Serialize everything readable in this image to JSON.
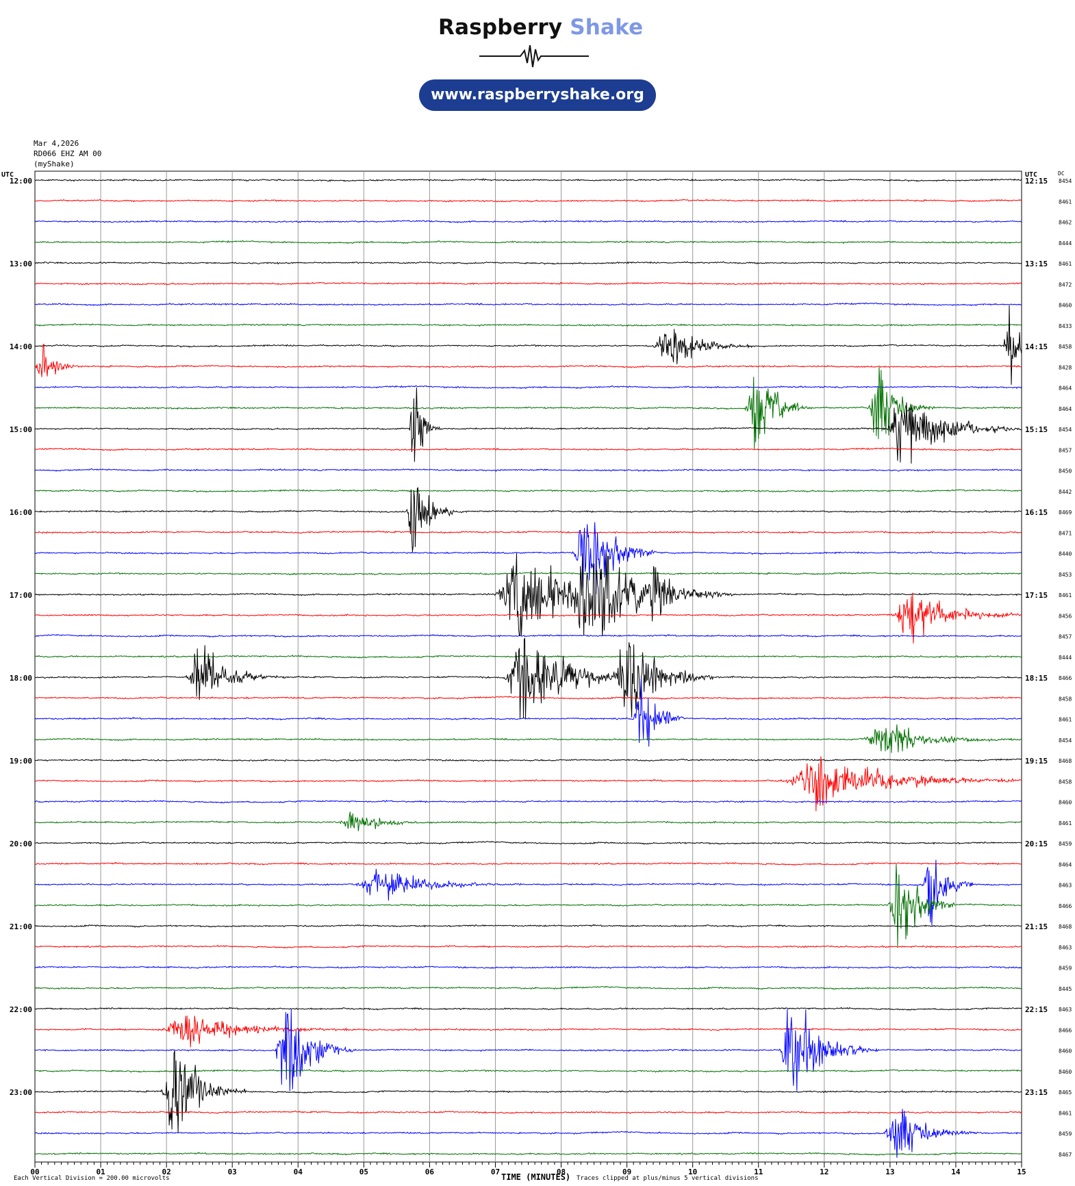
{
  "header": {
    "brand_part1": "Raspberry",
    "brand_part2": "Shake",
    "url": "www.raspberryshake.org"
  },
  "meta": {
    "date": "Mar 4,2026",
    "station": "RD066 EHZ AM 00",
    "network": "(myShake)"
  },
  "chart_data": {
    "type": "line",
    "title": "",
    "xlabel": "TIME (MINUTES)",
    "x_ticks": [
      "00",
      "01",
      "02",
      "03",
      "04",
      "05",
      "06",
      "07",
      "08",
      "09",
      "10",
      "11",
      "12",
      "13",
      "14",
      "15"
    ],
    "xlim": [
      0,
      15
    ],
    "left_axis_label": "UTC",
    "right_axis_label": "UTC",
    "dc_label": "DC",
    "hour_labels_left": [
      "12:00",
      "13:00",
      "14:00",
      "15:00",
      "16:00",
      "17:00",
      "18:00",
      "19:00",
      "20:00",
      "21:00",
      "22:00",
      "23:00"
    ],
    "hour_labels_right": [
      "12:15",
      "13:15",
      "14:15",
      "15:15",
      "16:15",
      "17:15",
      "18:15",
      "19:15",
      "20:15",
      "21:15",
      "22:15",
      "23:15"
    ],
    "trace_colors": [
      "#000000",
      "#ff0000",
      "#0000ff",
      "#007000"
    ],
    "dc_offsets": [
      8454,
      8461,
      8462,
      8444,
      8461,
      8472,
      8460,
      8433,
      8458,
      8428,
      8464,
      8464,
      8454,
      8457,
      8450,
      8442,
      8469,
      8471,
      8440,
      8453,
      8461,
      8456,
      8457,
      8444,
      8466,
      8458,
      8461,
      8454,
      8468,
      8458,
      8460,
      8461,
      8459,
      8464,
      8463,
      8466,
      8468,
      8463,
      8459,
      8445,
      8463,
      8466,
      8460,
      8460,
      8465,
      8461,
      8459,
      8467
    ],
    "bottom_note_left": "Each Vertical Division =  200.00 microvolts",
    "bottom_note_right": "Traces clipped at plus/minus 5 vertical divisions",
    "events": [
      {
        "line": 8,
        "minute": 9.6,
        "amp": 22,
        "dur": 0.6
      },
      {
        "line": 8,
        "minute": 14.8,
        "amp": 30,
        "dur": 0.25
      },
      {
        "line": 9,
        "minute": 0.1,
        "amp": 18,
        "dur": 0.3
      },
      {
        "line": 11,
        "minute": 10.95,
        "amp": 45,
        "dur": 0.4
      },
      {
        "line": 11,
        "minute": 12.8,
        "amp": 40,
        "dur": 0.4
      },
      {
        "line": 12,
        "minute": 13.2,
        "amp": 30,
        "dur": 0.9
      },
      {
        "line": 12,
        "minute": 5.75,
        "amp": 45,
        "dur": 0.2
      },
      {
        "line": 16,
        "minute": 5.75,
        "amp": 50,
        "dur": 0.3
      },
      {
        "line": 18,
        "minute": 8.35,
        "amp": 55,
        "dur": 0.5
      },
      {
        "line": 20,
        "minute": 7.3,
        "amp": 50,
        "dur": 0.8
      },
      {
        "line": 20,
        "minute": 8.4,
        "amp": 50,
        "dur": 1.0
      },
      {
        "line": 20,
        "minute": 9.4,
        "amp": 50,
        "dur": 0.3
      },
      {
        "line": 21,
        "minute": 13.3,
        "amp": 25,
        "dur": 0.8
      },
      {
        "line": 24,
        "minute": 2.5,
        "amp": 30,
        "dur": 0.6
      },
      {
        "line": 24,
        "minute": 7.4,
        "amp": 50,
        "dur": 0.8
      },
      {
        "line": 24,
        "minute": 9.0,
        "amp": 50,
        "dur": 0.6
      },
      {
        "line": 26,
        "minute": 9.2,
        "amp": 50,
        "dur": 0.3
      },
      {
        "line": 27,
        "minute": 12.9,
        "amp": 15,
        "dur": 0.9
      },
      {
        "line": 29,
        "minute": 11.9,
        "amp": 20,
        "dur": 1.6
      },
      {
        "line": 31,
        "minute": 4.8,
        "amp": 10,
        "dur": 0.6
      },
      {
        "line": 34,
        "minute": 5.2,
        "amp": 14,
        "dur": 1.0
      },
      {
        "line": 34,
        "minute": 13.6,
        "amp": 45,
        "dur": 0.3
      },
      {
        "line": 35,
        "minute": 13.1,
        "amp": 50,
        "dur": 0.4
      },
      {
        "line": 41,
        "minute": 2.3,
        "amp": 14,
        "dur": 1.2
      },
      {
        "line": 42,
        "minute": 3.8,
        "amp": 50,
        "dur": 0.5
      },
      {
        "line": 42,
        "minute": 11.5,
        "amp": 45,
        "dur": 0.6
      },
      {
        "line": 44,
        "minute": 2.1,
        "amp": 50,
        "dur": 0.5
      },
      {
        "line": 46,
        "minute": 13.1,
        "amp": 25,
        "dur": 0.6
      }
    ]
  }
}
